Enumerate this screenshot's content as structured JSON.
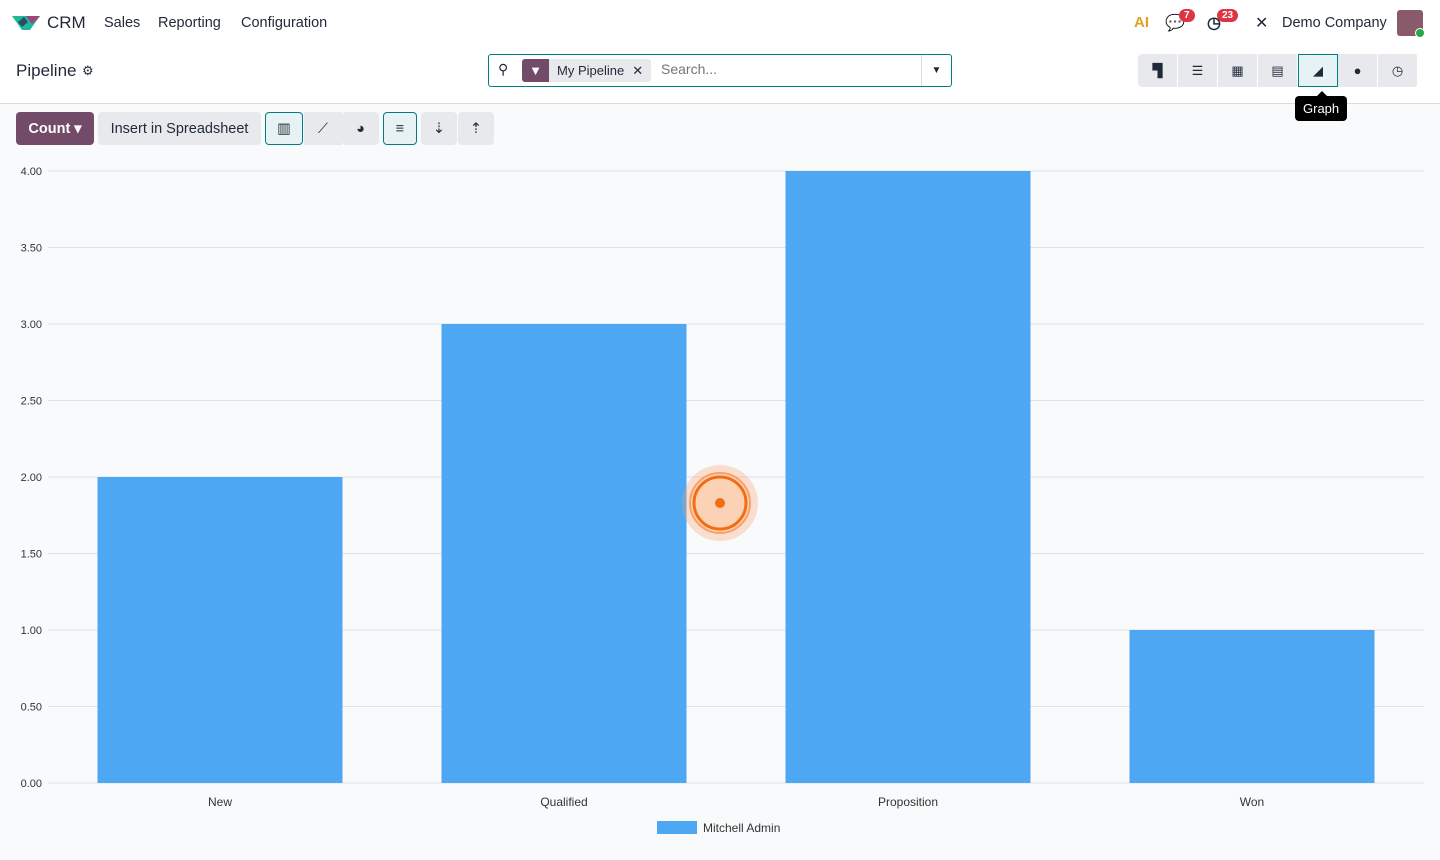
{
  "nav": {
    "app": "CRM",
    "menu": [
      "Sales",
      "Reporting",
      "Configuration"
    ],
    "ai_label": "AI",
    "messages_count": "7",
    "activities_count": "23",
    "company": "Demo Company"
  },
  "control": {
    "title": "Pipeline",
    "facet": "My Pipeline",
    "search_placeholder": "Search...",
    "tooltip": "Graph"
  },
  "toolbar": {
    "measure": "Count",
    "insert": "Insert in Spreadsheet"
  },
  "colors": {
    "bar": "#4ea7f2",
    "brand": "#714b67",
    "accent": "#017e84"
  },
  "chart_data": {
    "type": "bar",
    "categories": [
      "New",
      "Qualified",
      "Proposition",
      "Won"
    ],
    "series": [
      {
        "name": "Mitchell Admin",
        "values": [
          2,
          3,
          4,
          1
        ]
      }
    ],
    "ylim": [
      0,
      4
    ],
    "yticks": [
      "0.00",
      "0.50",
      "1.00",
      "1.50",
      "2.00",
      "2.50",
      "3.00",
      "3.50",
      "4.00"
    ],
    "legend": "bottom",
    "grid": true
  }
}
